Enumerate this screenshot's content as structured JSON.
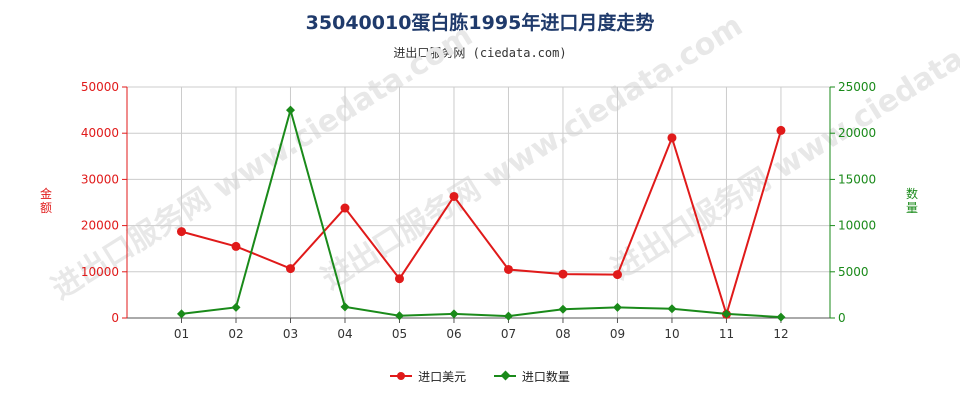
{
  "title": "35040010蛋白胨1995年进口月度走势",
  "subtitle": "进出口服务网 (ciedata.com)",
  "watermark": "进出口服务网 www.ciedata.com",
  "colors": {
    "amount": "#e01a1a",
    "quantity": "#1a8a1a",
    "grid": "#cccccc",
    "title": "#1f3a6b"
  },
  "chart_data": {
    "type": "line",
    "title": "35040010蛋白胨1995年进口月度走势",
    "categories": [
      "01",
      "02",
      "03",
      "04",
      "05",
      "06",
      "07",
      "08",
      "09",
      "10",
      "11",
      "12"
    ],
    "left_axis": {
      "label": "金额",
      "ylim": [
        0,
        50000
      ],
      "ticks": [
        "0",
        "10000",
        "20000",
        "30000",
        "40000",
        "50000"
      ]
    },
    "right_axis": {
      "label": "数量",
      "ylim": [
        0,
        25000
      ],
      "ticks": [
        "0",
        "5000",
        "10000",
        "15000",
        "20000",
        "25000"
      ]
    },
    "series": [
      {
        "name": "进口美元",
        "axis": "left",
        "color": "#e01a1a",
        "marker": "circle",
        "values": [
          18700,
          15500,
          10700,
          23800,
          8500,
          26300,
          10500,
          9500,
          9400,
          39000,
          800,
          40600
        ]
      },
      {
        "name": "进口数量",
        "axis": "right",
        "color": "#1a8a1a",
        "marker": "diamond",
        "values": [
          450,
          1150,
          22500,
          1200,
          250,
          450,
          200,
          950,
          1150,
          1000,
          450,
          100
        ]
      }
    ],
    "grid": true,
    "legend": "bottom-center"
  }
}
